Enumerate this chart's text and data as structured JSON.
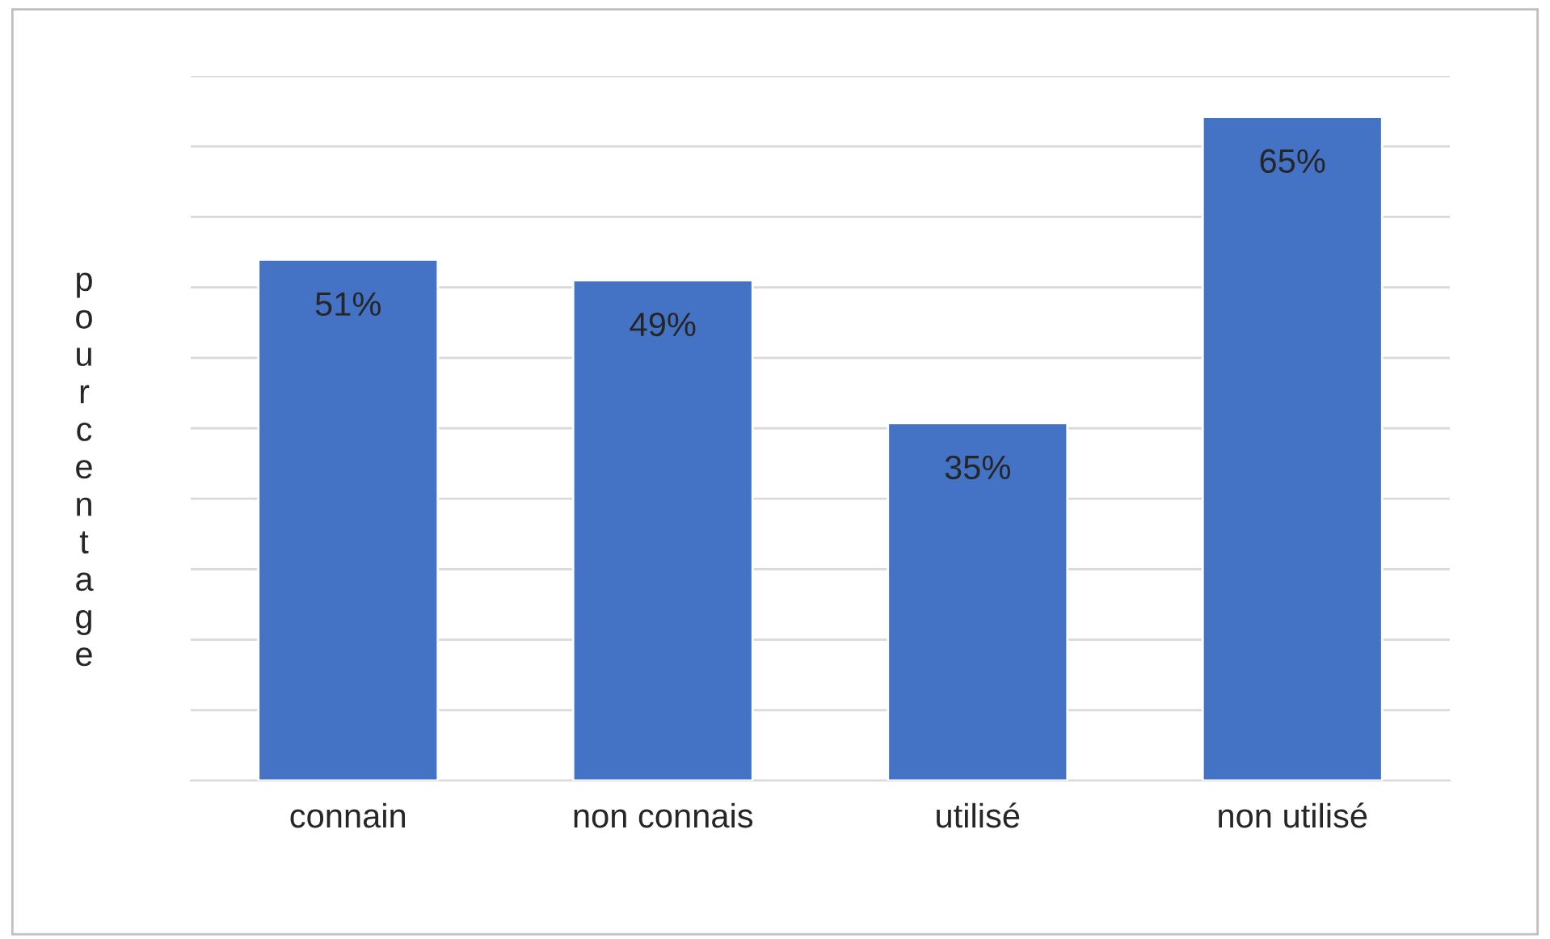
{
  "chart_data": {
    "type": "bar",
    "ylabel": "pourcentage",
    "categories": [
      "connain",
      "non connais",
      "utilisé",
      "non utilisé"
    ],
    "values": [
      51,
      49,
      35,
      65
    ],
    "value_labels": [
      "51%",
      "49%",
      "35%",
      "65%"
    ],
    "color": "#4472c4",
    "ylim": [
      0,
      69
    ],
    "yticks": [
      {
        "value": 0,
        "label": null
      },
      {
        "value": 6.9,
        "label": null
      },
      {
        "value": 13.8,
        "label": null
      },
      {
        "value": 20.7,
        "label": null
      },
      {
        "value": 27.6,
        "label": null
      },
      {
        "value": 34.5,
        "label": null
      },
      {
        "value": 41.4,
        "label": null
      },
      {
        "value": 48.3,
        "label": null
      },
      {
        "value": 55.2,
        "label": null
      },
      {
        "value": 62.1,
        "label": null
      },
      {
        "value": 69,
        "label": null
      }
    ],
    "grid": "y",
    "tick_labels": "x"
  }
}
